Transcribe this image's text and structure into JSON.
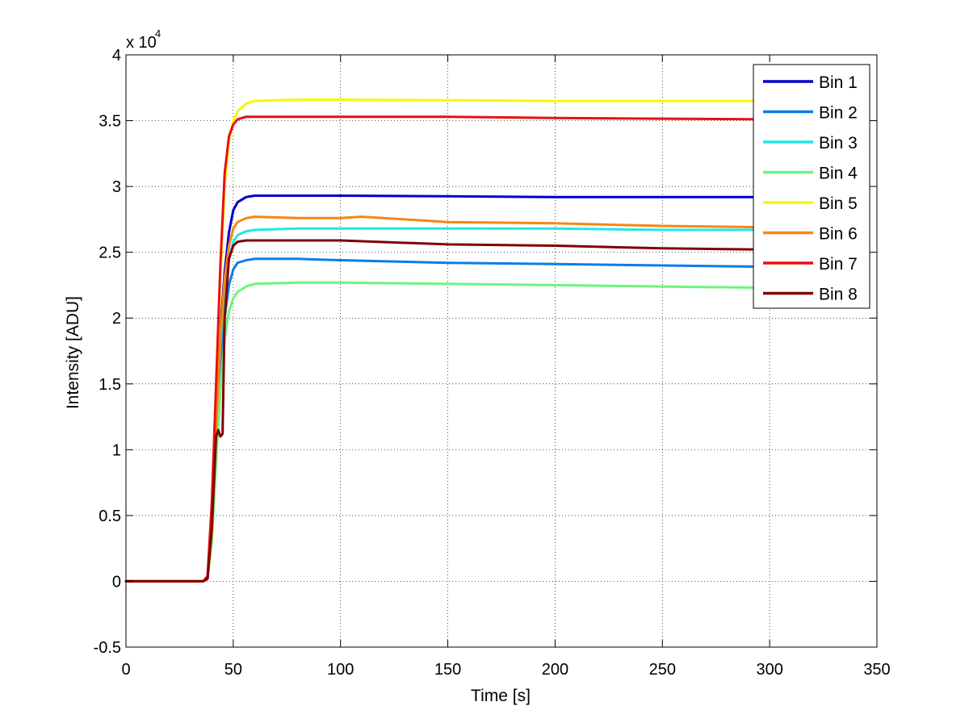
{
  "chart_data": {
    "type": "line",
    "title": "",
    "xlabel": "Time [s]",
    "ylabel": "Intensity [ADU]",
    "y_multiplier_label": "x 10",
    "y_multiplier_exponent": "4",
    "xlim": [
      0,
      350
    ],
    "ylim": [
      -0.5,
      4
    ],
    "x_ticks": [
      0,
      50,
      100,
      150,
      200,
      250,
      300,
      350
    ],
    "x_tick_labels": [
      "0",
      "50",
      "100",
      "150",
      "200",
      "250",
      "300",
      "350"
    ],
    "y_ticks": [
      -0.5,
      0,
      0.5,
      1,
      1.5,
      2,
      2.5,
      3,
      3.5,
      4
    ],
    "y_tick_labels": [
      "-0.5",
      "0",
      "0.5",
      "1",
      "1.5",
      "2",
      "2.5",
      "3",
      "3.5",
      "4"
    ],
    "grid": true,
    "legend_position": "top-right",
    "series": [
      {
        "name": "Bin 1",
        "color": "#0000cc",
        "x": [
          0,
          36,
          38,
          40,
          42,
          44,
          46,
          48,
          50,
          52,
          56,
          60,
          80,
          100,
          150,
          200,
          250,
          300
        ],
        "y": [
          0,
          0,
          0.02,
          0.4,
          1.2,
          1.9,
          2.35,
          2.65,
          2.82,
          2.88,
          2.92,
          2.93,
          2.93,
          2.93,
          2.925,
          2.92,
          2.92,
          2.92
        ]
      },
      {
        "name": "Bin 2",
        "color": "#0a7de8",
        "x": [
          0,
          36,
          38,
          40,
          42,
          44,
          46,
          48,
          50,
          52,
          56,
          60,
          80,
          100,
          150,
          200,
          250,
          300
        ],
        "y": [
          0,
          0,
          0.02,
          0.35,
          1.0,
          1.6,
          2.0,
          2.25,
          2.37,
          2.42,
          2.44,
          2.45,
          2.45,
          2.44,
          2.42,
          2.41,
          2.4,
          2.39
        ]
      },
      {
        "name": "Bin 3",
        "color": "#1de8e6",
        "x": [
          0,
          36,
          38,
          40,
          42,
          44,
          46,
          48,
          50,
          52,
          56,
          60,
          80,
          100,
          150,
          200,
          250,
          300
        ],
        "y": [
          0,
          0,
          0.02,
          0.37,
          1.1,
          1.8,
          2.2,
          2.45,
          2.58,
          2.63,
          2.66,
          2.67,
          2.68,
          2.68,
          2.68,
          2.68,
          2.67,
          2.67
        ]
      },
      {
        "name": "Bin 4",
        "color": "#6ef47f",
        "x": [
          0,
          36,
          38,
          40,
          42,
          44,
          46,
          48,
          50,
          52,
          56,
          60,
          80,
          100,
          150,
          200,
          250,
          300
        ],
        "y": [
          0,
          0,
          0.02,
          0.3,
          0.9,
          1.45,
          1.85,
          2.05,
          2.15,
          2.2,
          2.24,
          2.26,
          2.27,
          2.27,
          2.26,
          2.25,
          2.24,
          2.23
        ]
      },
      {
        "name": "Bin 5",
        "color": "#f7f706",
        "x": [
          0,
          36,
          38,
          40,
          42,
          44,
          46,
          48,
          50,
          52,
          56,
          60,
          80,
          100,
          150,
          200,
          250,
          300
        ],
        "y": [
          0,
          0,
          0.03,
          0.5,
          1.4,
          2.3,
          3.0,
          3.35,
          3.5,
          3.57,
          3.63,
          3.65,
          3.66,
          3.66,
          3.655,
          3.65,
          3.65,
          3.65
        ]
      },
      {
        "name": "Bin 6",
        "color": "#f98512",
        "x": [
          0,
          36,
          38,
          40,
          42,
          44,
          46,
          48,
          50,
          52,
          56,
          60,
          80,
          100,
          110,
          150,
          200,
          250,
          300
        ],
        "y": [
          0,
          0,
          0.02,
          0.38,
          1.15,
          1.85,
          2.3,
          2.55,
          2.68,
          2.73,
          2.76,
          2.77,
          2.76,
          2.76,
          2.77,
          2.73,
          2.72,
          2.7,
          2.69
        ]
      },
      {
        "name": "Bin 7",
        "color": "#e81010",
        "x": [
          0,
          36,
          38,
          40,
          42,
          44,
          46,
          48,
          50,
          52,
          56,
          60,
          80,
          100,
          150,
          200,
          250,
          300
        ],
        "y": [
          0,
          0,
          0.04,
          0.6,
          1.5,
          2.4,
          3.1,
          3.38,
          3.47,
          3.51,
          3.53,
          3.53,
          3.53,
          3.53,
          3.53,
          3.52,
          3.515,
          3.51
        ]
      },
      {
        "name": "Bin 8",
        "color": "#800000",
        "x": [
          0,
          36,
          38,
          40,
          42,
          43,
          44,
          45,
          46,
          48,
          50,
          52,
          56,
          60,
          80,
          100,
          150,
          200,
          250,
          300
        ],
        "y": [
          0,
          0,
          0.02,
          0.4,
          1.1,
          1.15,
          1.1,
          1.12,
          2.0,
          2.45,
          2.55,
          2.58,
          2.59,
          2.59,
          2.59,
          2.59,
          2.56,
          2.55,
          2.53,
          2.52
        ]
      }
    ]
  }
}
